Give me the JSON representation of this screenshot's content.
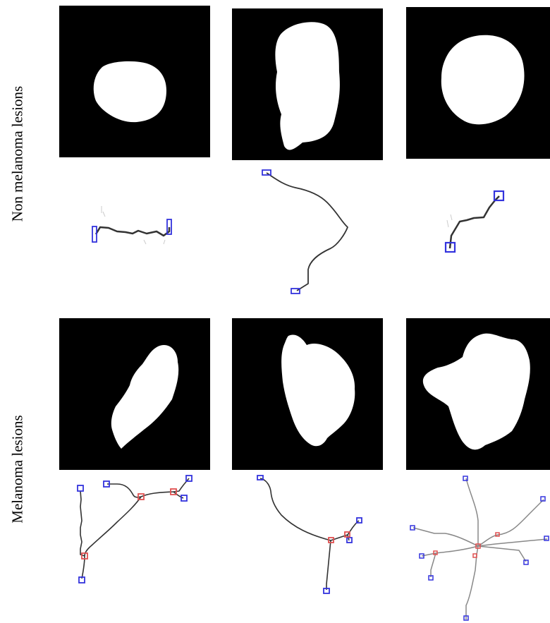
{
  "figure": {
    "rows": [
      {
        "label": "Non melanoma lesions"
      },
      {
        "label": "Melanoma lesions"
      }
    ]
  },
  "colors": {
    "background": "#ffffff",
    "mask_background": "#000000",
    "lesion": "#ffffff",
    "skeleton_line": "#333333",
    "skeleton_line_light": "#888888",
    "endpoint_marker": "#3333dd",
    "branchpoint_marker": "#e05050"
  }
}
